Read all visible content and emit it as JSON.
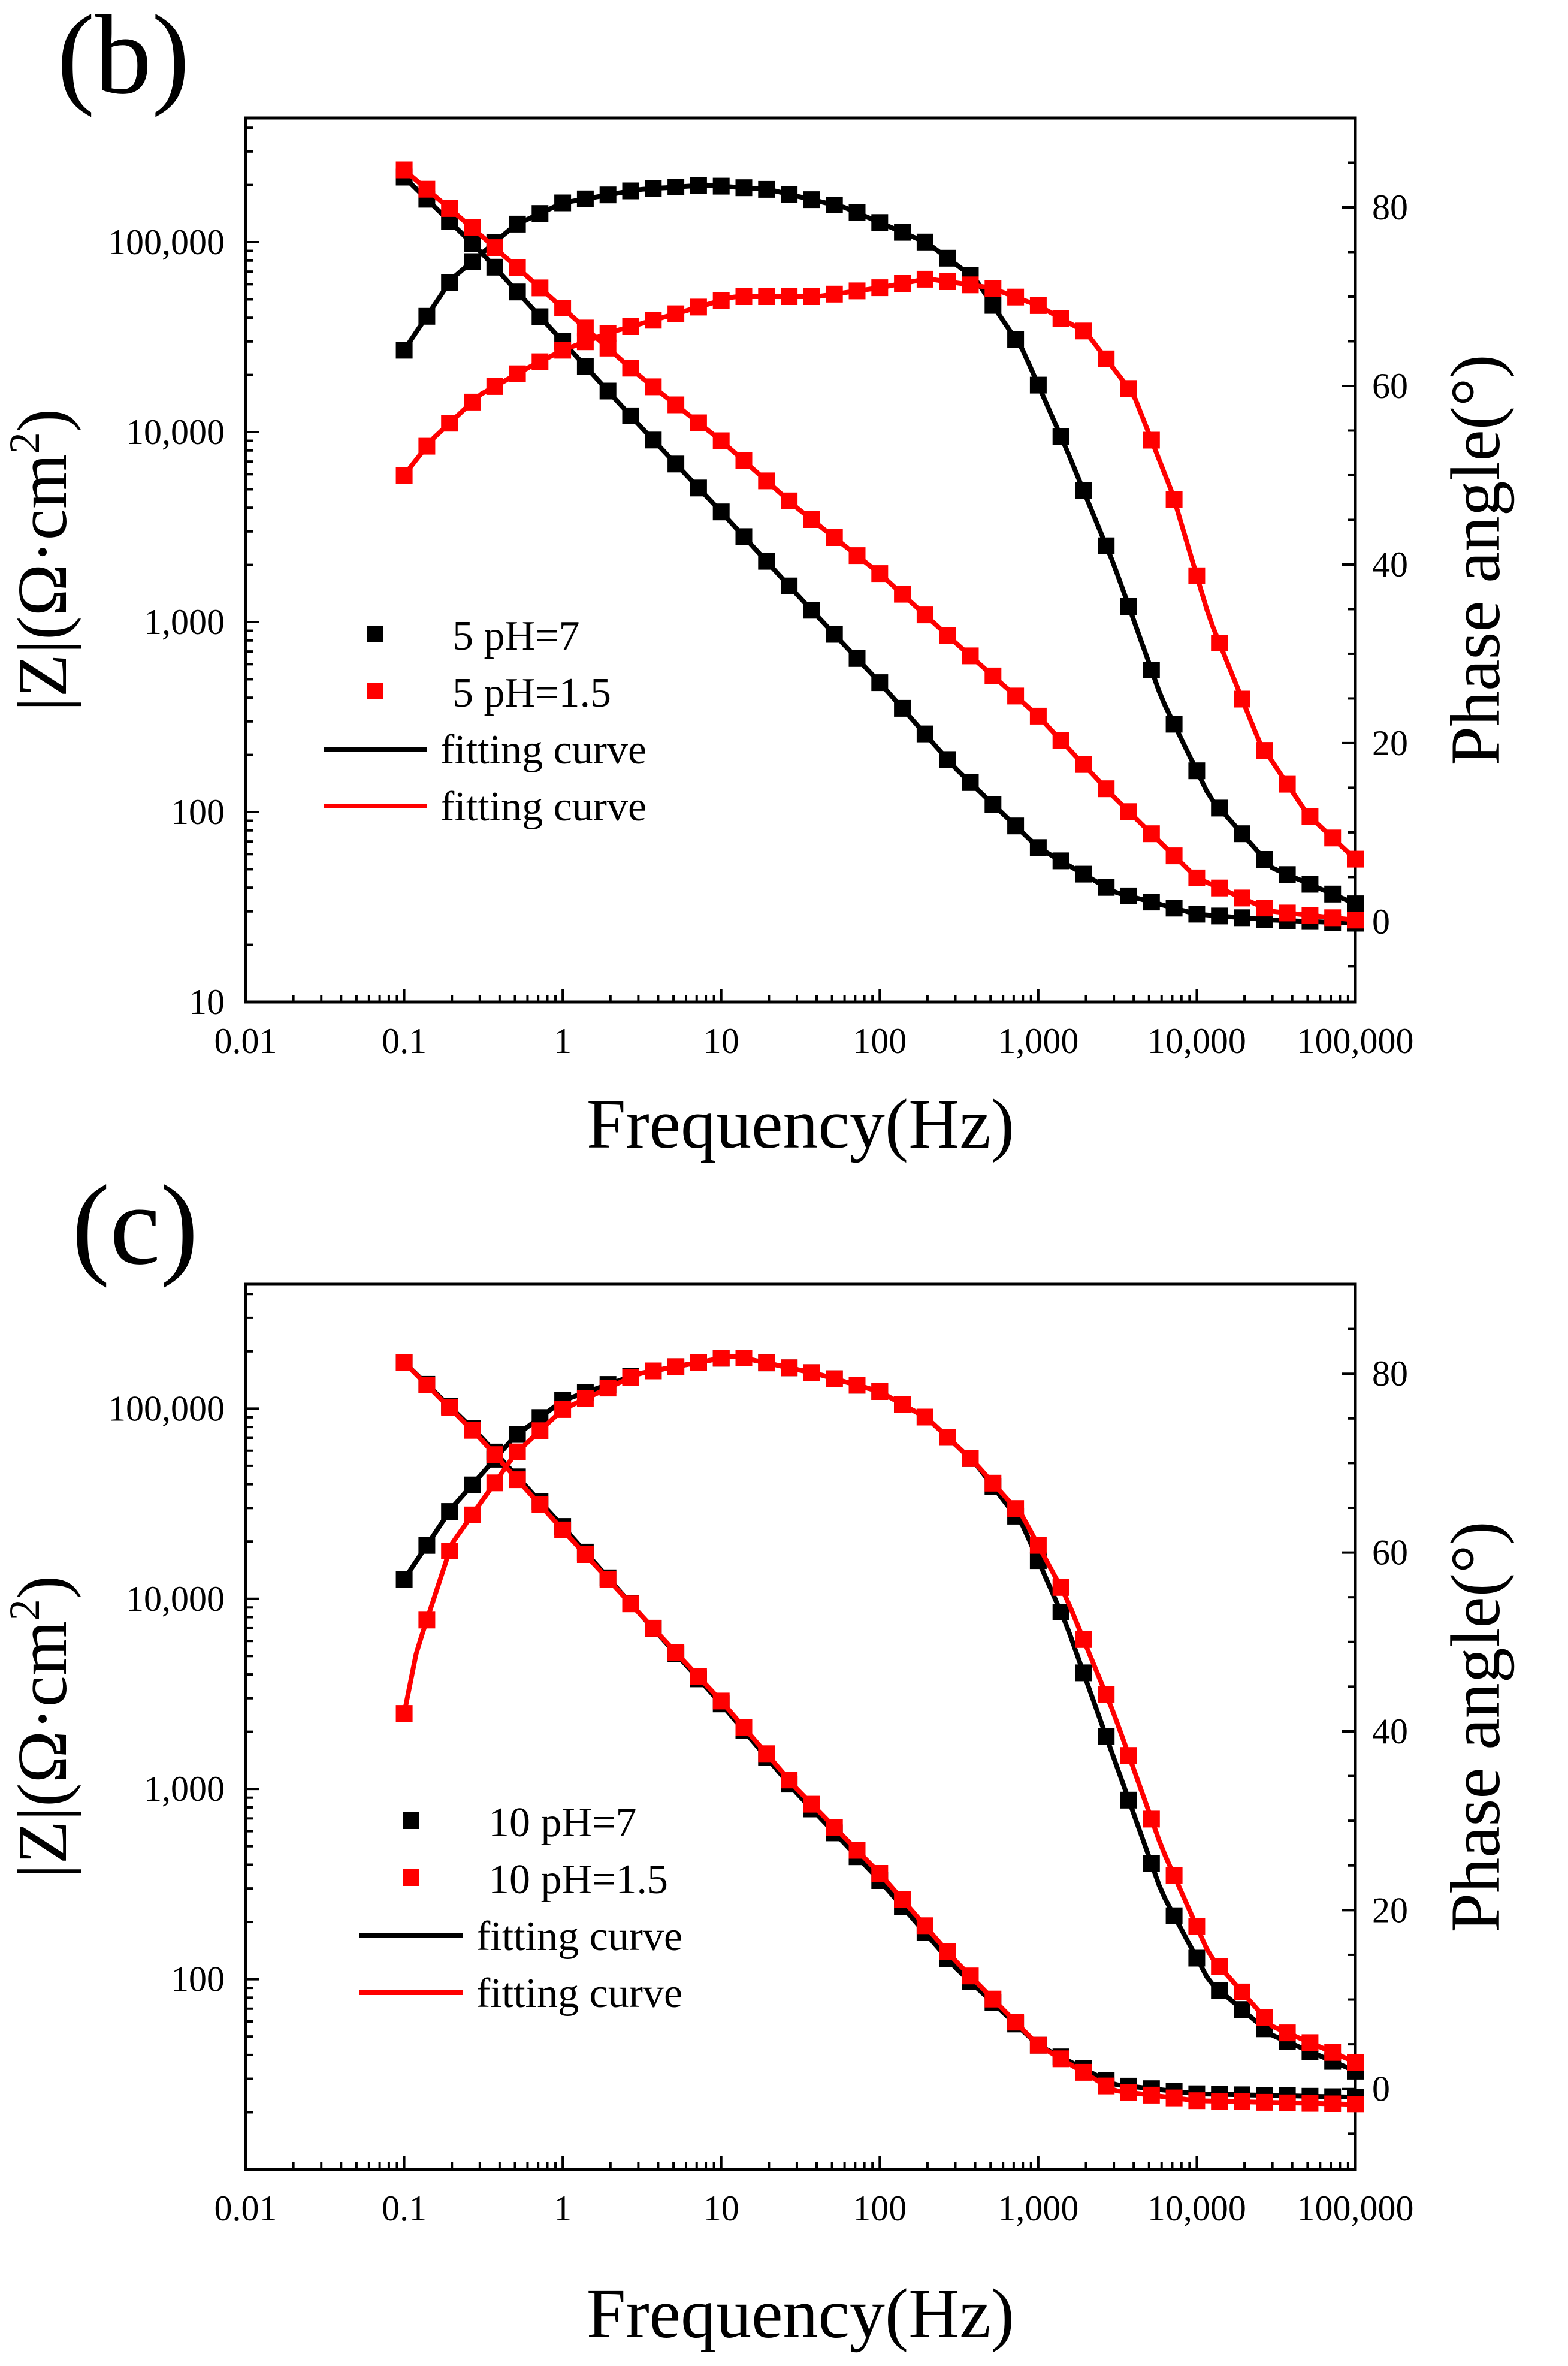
{
  "figure": {
    "colors": {
      "black": "#000000",
      "red": "#ff0000"
    }
  },
  "chart_data": [
    {
      "panel": "(b)",
      "type": "line",
      "title": "",
      "xlabel": "Frequency(Hz)",
      "ylabel_left": "|Z|(Ω·cm²)",
      "ylabel_left_parts": {
        "pre": "|Z|(Ω·cm",
        "sup": "2",
        "post": ")"
      },
      "ylabel_right": "Phase angle(°)",
      "x_scale": "log",
      "xlim": [
        0.01,
        100000
      ],
      "x_ticks": [
        {
          "value": 0.01,
          "label": "0.01"
        },
        {
          "value": 0.1,
          "label": "0.1"
        },
        {
          "value": 1,
          "label": "1"
        },
        {
          "value": 10,
          "label": "10"
        },
        {
          "value": 100,
          "label": "100"
        },
        {
          "value": 1000,
          "label": "1,000"
        },
        {
          "value": 10000,
          "label": "10,000"
        },
        {
          "value": 100000,
          "label": "100,000"
        }
      ],
      "y_left_scale": "log",
      "y_left_lim": [
        10,
        450000
      ],
      "y_left_ticks": [
        {
          "value": 10,
          "label": "10"
        },
        {
          "value": 100,
          "label": "100"
        },
        {
          "value": 1000,
          "label": "1,000"
        },
        {
          "value": 10000,
          "label": "10,000"
        },
        {
          "value": 100000,
          "label": "100,000"
        }
      ],
      "y_right_lim": [
        -9,
        90
      ],
      "y_right_ticks": [
        {
          "value": 0,
          "label": "0"
        },
        {
          "value": 20,
          "label": "20"
        },
        {
          "value": 40,
          "label": "40"
        },
        {
          "value": 60,
          "label": "60"
        },
        {
          "value": 80,
          "label": "80"
        }
      ],
      "legend": [
        {
          "label": "5 pH=7",
          "kind": "marker",
          "color": "#000000"
        },
        {
          "label": "5 pH=1.5",
          "kind": "marker",
          "color": "#ff0000"
        },
        {
          "label": "fitting curve",
          "kind": "line",
          "color": "#000000"
        },
        {
          "label": "fitting curve",
          "kind": "line",
          "color": "#ff0000"
        }
      ],
      "series": [
        {
          "name": "5 pH=7 |Z|",
          "color": "#000000",
          "axis": "left",
          "x": [
            0.1,
            0.3,
            1,
            3,
            10,
            30,
            100,
            300,
            1000,
            3000,
            10000,
            30000,
            100000
          ],
          "y": [
            220000,
            90000,
            30000,
            11000,
            3800,
            1400,
            480,
            170,
            65,
            38,
            29,
            27,
            26
          ]
        },
        {
          "name": "5 pH=7 phase",
          "color": "#000000",
          "axis": "right",
          "x": [
            0.1,
            0.2,
            0.5,
            1,
            3,
            8,
            20,
            60,
            200,
            400,
            800,
            1500,
            3000,
            6000,
            12000,
            30000,
            100000
          ],
          "y": [
            64,
            72,
            78,
            80.5,
            82,
            82.5,
            82,
            80,
            76,
            72,
            64,
            53,
            40,
            25,
            14,
            6,
            2
          ]
        },
        {
          "name": "5 pH=1.5 |Z|",
          "color": "#ff0000",
          "axis": "left",
          "x": [
            0.1,
            0.3,
            1,
            3,
            10,
            30,
            100,
            300,
            1000,
            3000,
            10000,
            30000,
            100000
          ],
          "y": [
            240000,
            110000,
            45000,
            20000,
            9000,
            4000,
            1800,
            780,
            320,
            120,
            45,
            30,
            27
          ]
        },
        {
          "name": "5 pH=1.5 phase",
          "color": "#ff0000",
          "axis": "right",
          "x": [
            0.1,
            0.15,
            0.3,
            0.6,
            1,
            2,
            5,
            12,
            40,
            100,
            200,
            500,
            1000,
            2000,
            4000,
            7000,
            12000,
            25000,
            50000,
            100000
          ],
          "y": [
            50,
            54,
            59,
            62,
            64,
            66,
            68,
            70,
            70,
            71,
            72,
            71,
            69,
            66,
            59,
            48,
            34,
            20,
            12,
            7
          ]
        }
      ]
    },
    {
      "panel": "(c)",
      "type": "line",
      "title": "",
      "xlabel": "Frequency(Hz)",
      "ylabel_left": "|Z|(Ω·cm²)",
      "ylabel_left_parts": {
        "pre": "|Z|(Ω·cm",
        "sup": "2",
        "post": ")"
      },
      "ylabel_right": "Phase angle(°)",
      "x_scale": "log",
      "xlim": [
        0.01,
        100000
      ],
      "x_ticks": [
        {
          "value": 0.01,
          "label": "0.01"
        },
        {
          "value": 0.1,
          "label": "0.1"
        },
        {
          "value": 1,
          "label": "1"
        },
        {
          "value": 10,
          "label": "10"
        },
        {
          "value": 100,
          "label": "100"
        },
        {
          "value": 1000,
          "label": "1,000"
        },
        {
          "value": 10000,
          "label": "10,000"
        },
        {
          "value": 100000,
          "label": "100,000"
        }
      ],
      "y_left_scale": "log",
      "y_left_lim": [
        10,
        450000
      ],
      "y_left_ticks": [
        {
          "value": 100,
          "label": "100"
        },
        {
          "value": 1000,
          "label": "1,000"
        },
        {
          "value": 10000,
          "label": "10,000"
        },
        {
          "value": 100000,
          "label": "100,000"
        }
      ],
      "y_right_lim": [
        -9,
        90
      ],
      "y_right_ticks": [
        {
          "value": 0,
          "label": "0"
        },
        {
          "value": 20,
          "label": "20"
        },
        {
          "value": 40,
          "label": "40"
        },
        {
          "value": 60,
          "label": "60"
        },
        {
          "value": 80,
          "label": "80"
        }
      ],
      "legend": [
        {
          "label": "10 pH=7",
          "kind": "marker",
          "color": "#000000"
        },
        {
          "label": "10 pH=1.5",
          "kind": "marker",
          "color": "#ff0000"
        },
        {
          "label": "fitting curve",
          "kind": "line",
          "color": "#000000"
        },
        {
          "label": "fitting curve",
          "kind": "line",
          "color": "#ff0000"
        }
      ],
      "series": [
        {
          "name": "10 pH=7 |Z|",
          "color": "#000000",
          "axis": "left",
          "x": [
            0.1,
            0.3,
            1,
            3,
            10,
            30,
            100,
            300,
            1000,
            3000,
            10000,
            30000,
            100000
          ],
          "y": [
            175000,
            72000,
            24000,
            8500,
            2800,
            950,
            330,
            115,
            45,
            28,
            25,
            24.5,
            24
          ]
        },
        {
          "name": "10 pH=7 phase",
          "color": "#000000",
          "axis": "right",
          "x": [
            0.1,
            0.2,
            0.5,
            1,
            3,
            12,
            40,
            100,
            200,
            400,
            800,
            1500,
            3000,
            6000,
            12000,
            30000,
            100000
          ],
          "y": [
            57,
            65,
            73,
            77,
            80,
            82,
            80,
            78,
            75,
            70,
            63,
            52,
            37,
            22,
            12,
            6,
            2
          ]
        },
        {
          "name": "10 pH=1.5 |Z|",
          "color": "#ff0000",
          "axis": "left",
          "x": [
            0.1,
            0.3,
            1,
            3,
            10,
            30,
            100,
            300,
            1000,
            3000,
            10000,
            30000,
            100000
          ],
          "y": [
            175000,
            70000,
            23000,
            8500,
            2900,
            1000,
            360,
            125,
            45,
            26,
            23,
            22.5,
            22
          ]
        },
        {
          "name": "10 pH=1.5 phase",
          "color": "#ff0000",
          "axis": "right",
          "x": [
            0.1,
            0.12,
            0.2,
            0.5,
            1,
            3,
            12,
            40,
            100,
            200,
            400,
            800,
            1500,
            3000,
            6000,
            12000,
            30000,
            100000
          ],
          "y": [
            42,
            49,
            61,
            71,
            76,
            80,
            82,
            80,
            78,
            75,
            70,
            64,
            55,
            42,
            27,
            15,
            7,
            3
          ]
        }
      ]
    }
  ]
}
